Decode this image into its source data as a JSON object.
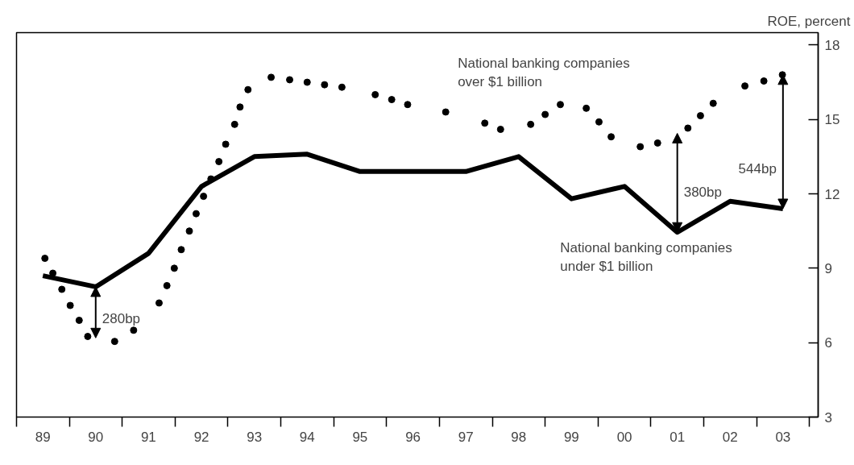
{
  "chart_data": {
    "type": "line",
    "ylabel": "ROE, percent",
    "xlim": [
      "1989-01-01",
      "2004-03-01"
    ],
    "ylim": [
      3,
      18.5
    ],
    "yticks": [
      3,
      6,
      9,
      12,
      15,
      18
    ],
    "xticks": [
      {
        "value": "1989-01-01",
        "label": null
      },
      {
        "value": "1990-01-01",
        "label": null
      },
      {
        "value": "1991-01-01",
        "label": null
      },
      {
        "value": "1992-01-01",
        "label": null
      },
      {
        "value": "1993-01-01",
        "label": null
      },
      {
        "value": "1994-01-01",
        "label": null
      },
      {
        "value": "1995-01-01",
        "label": null
      },
      {
        "value": "1996-01-01",
        "label": null
      },
      {
        "value": "1997-01-01",
        "label": null
      },
      {
        "value": "1998-01-01",
        "label": null
      },
      {
        "value": "1999-01-01",
        "label": null
      },
      {
        "value": "2000-01-01",
        "label": null
      },
      {
        "value": "2001-01-01",
        "label": null
      },
      {
        "value": "2002-01-01",
        "label": null
      },
      {
        "value": "2003-01-01",
        "label": null
      },
      {
        "value": "2004-01-01",
        "label": null
      },
      {
        "value": "1989-07-02",
        "label": "89"
      },
      {
        "value": "1990-07-02",
        "label": "90"
      },
      {
        "value": "1991-07-02",
        "label": "91"
      },
      {
        "value": "1992-07-02",
        "label": "92"
      },
      {
        "value": "1993-07-02",
        "label": "93"
      },
      {
        "value": "1994-07-02",
        "label": "94"
      },
      {
        "value": "1995-07-02",
        "label": "95"
      },
      {
        "value": "1996-07-02",
        "label": "96"
      },
      {
        "value": "1997-07-02",
        "label": "97"
      },
      {
        "value": "1998-07-02",
        "label": "98"
      },
      {
        "value": "1999-07-02",
        "label": "99"
      },
      {
        "value": "2000-07-02",
        "label": "00"
      },
      {
        "value": "2001-07-02",
        "label": "01"
      },
      {
        "value": "2002-07-02",
        "label": "02"
      },
      {
        "value": "2003-07-02",
        "label": "03"
      }
    ],
    "series": [
      {
        "name": "National banking companies\nunder $1 billion",
        "color": "#000000",
        "x": [
          "1989-07-02",
          "1990-07-02",
          "1991-07-02",
          "1992-07-02",
          "1993-07-02",
          "1994-07-02",
          "1995-07-02",
          "1996-07-02",
          "1997-07-02",
          "1998-07-02",
          "1999-07-02",
          "2000-07-02",
          "2001-07-02",
          "2002-07-02",
          "2003-07-02"
        ],
        "values": [
          8.7,
          8.25,
          9.6,
          12.3,
          13.5,
          13.6,
          12.9,
          12.9,
          12.9,
          13.5,
          11.8,
          12.3,
          10.45,
          11.7,
          11.4
        ]
      },
      {
        "name": "National banking companies\nover $1 billion",
        "type": "scatter",
        "marker": "circle",
        "color": "#000000",
        "x": [
          "1989-07-16",
          "1989-09-09",
          "1989-11-10",
          "1990-01-07",
          "1990-03-10",
          "1990-05-08",
          "1990-11-10",
          "1991-03-21",
          "1991-09-13",
          "1991-11-06",
          "1991-12-27",
          "1992-02-13",
          "1992-04-09",
          "1992-05-26",
          "1992-07-16",
          "1992-09-05",
          "1992-10-30",
          "1992-12-16",
          "1993-02-16",
          "1993-03-25",
          "1993-05-19",
          "1993-10-26",
          "1994-03-03",
          "1994-07-02",
          "1994-10-30",
          "1995-02-27",
          "1995-10-15",
          "1996-02-06",
          "1996-05-26",
          "1997-02-13",
          "1997-11-10",
          "1998-02-27",
          "1998-09-23",
          "1999-01-01",
          "1999-04-16",
          "1999-10-12",
          "2000-01-08",
          "2000-04-01",
          "2000-10-19",
          "2001-02-16",
          "2001-09-13",
          "2001-12-09",
          "2002-03-07",
          "2002-10-12",
          "2003-02-20",
          "2003-06-28"
        ],
        "values": [
          9.4,
          8.8,
          8.15,
          7.5,
          6.9,
          6.25,
          6.05,
          6.5,
          7.6,
          8.3,
          9.0,
          9.75,
          10.5,
          11.2,
          11.9,
          12.6,
          13.3,
          14.0,
          14.8,
          15.5,
          16.2,
          16.7,
          16.6,
          16.5,
          16.4,
          16.3,
          16.0,
          15.8,
          15.6,
          15.3,
          14.85,
          14.6,
          14.8,
          15.2,
          15.6,
          15.45,
          14.9,
          14.3,
          13.9,
          14.05,
          14.65,
          15.15,
          15.65,
          16.35,
          16.55,
          16.8
        ]
      }
    ],
    "annotations": [
      {
        "text": "280bp",
        "x": "1990-07-02",
        "y": 8.25
      },
      {
        "text": "380bp",
        "x": "2001-07-02",
        "y": 10.45
      },
      {
        "text": "544bp",
        "x": "2003-07-02",
        "y": 11.4
      }
    ]
  }
}
